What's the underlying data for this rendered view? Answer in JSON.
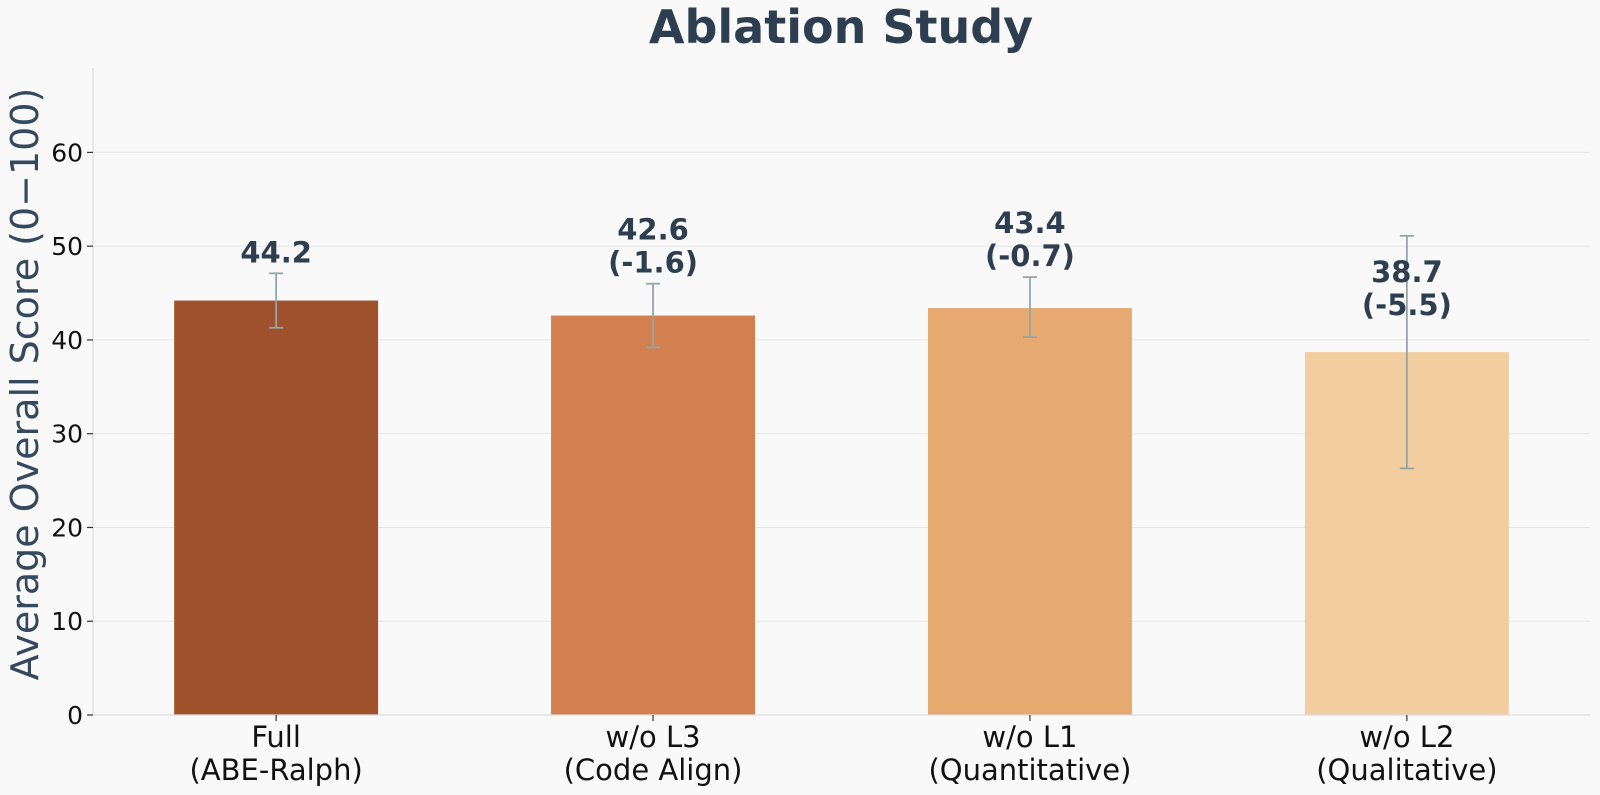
{
  "chart_data": {
    "type": "bar",
    "title": "Ablation Study",
    "ylabel": "Average Overall Score (0−100)",
    "xlabel": "",
    "ylim": [
      0,
      69
    ],
    "yticks": [
      0,
      10,
      20,
      30,
      40,
      50,
      60
    ],
    "grid": true,
    "categories": [
      [
        "Full",
        "(ABE-Ralph)"
      ],
      [
        "w/o L3",
        "(Code Align)"
      ],
      [
        "w/o L1",
        "(Quantitative)"
      ],
      [
        "w/o L2",
        "(Qualitative)"
      ]
    ],
    "values": [
      44.2,
      42.6,
      43.4,
      38.7
    ],
    "error_low": [
      41.3,
      39.2,
      40.3,
      26.3
    ],
    "error_high": [
      47.1,
      46.0,
      46.7,
      51.1
    ],
    "data_labels": [
      [
        "44.2"
      ],
      [
        "42.6",
        "(-1.6)"
      ],
      [
        "43.4",
        "(-0.7)"
      ],
      [
        "38.7",
        "(-5.5)"
      ]
    ],
    "colors": [
      "#a0522d",
      "#d2804f",
      "#e6a970",
      "#f2cda0"
    ],
    "error_color": "#95a5a6"
  }
}
